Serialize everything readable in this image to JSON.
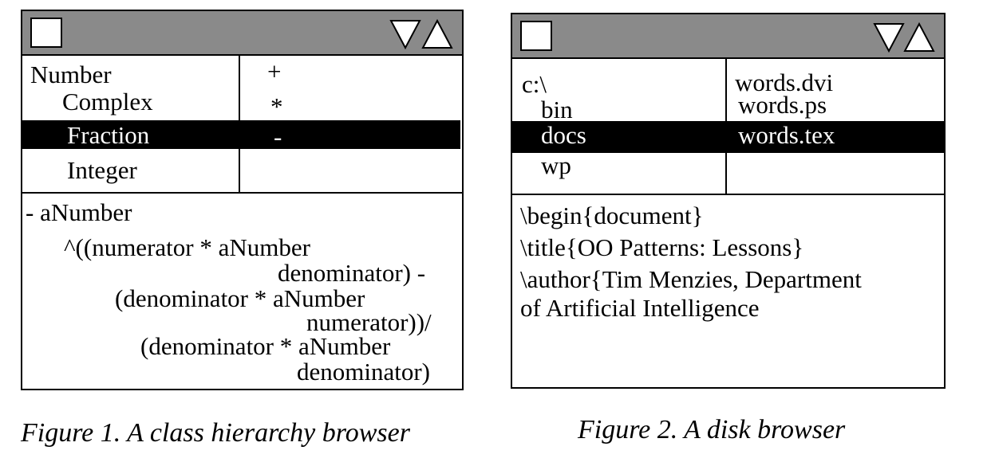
{
  "figure1": {
    "hierarchy": [
      "Number",
      "Complex",
      "Fraction",
      "Integer"
    ],
    "selected_class": "Fraction",
    "methods": [
      "+",
      "*",
      "-"
    ],
    "selected_method": "-",
    "code": [
      "- aNumber",
      "^((numerator * aNumber",
      "denominator) -",
      "(denominator * aNumber",
      "numerator))/",
      "(denominator * aNumber",
      "denominator)"
    ],
    "caption": "Figure 1. A class hierarchy browser"
  },
  "figure2": {
    "dirs": [
      "c:\\",
      "bin",
      "docs",
      "wp"
    ],
    "selected_dir": "docs",
    "files": [
      "words.dvi",
      "words.ps",
      "words.tex"
    ],
    "selected_file": "words.tex",
    "text": [
      "\\begin{document}",
      "\\title{OO Patterns: Lessons}",
      "\\author{Tim Menzies, Department",
      "of Artificial Intelligence"
    ],
    "caption": "Figure 2. A disk browser"
  },
  "colors": {
    "titlebar": "#8a8a8a",
    "selection": "#000000"
  },
  "icons": [
    "window-menu-box-icon",
    "minimize-triangle-icon",
    "maximize-triangle-icon"
  ]
}
